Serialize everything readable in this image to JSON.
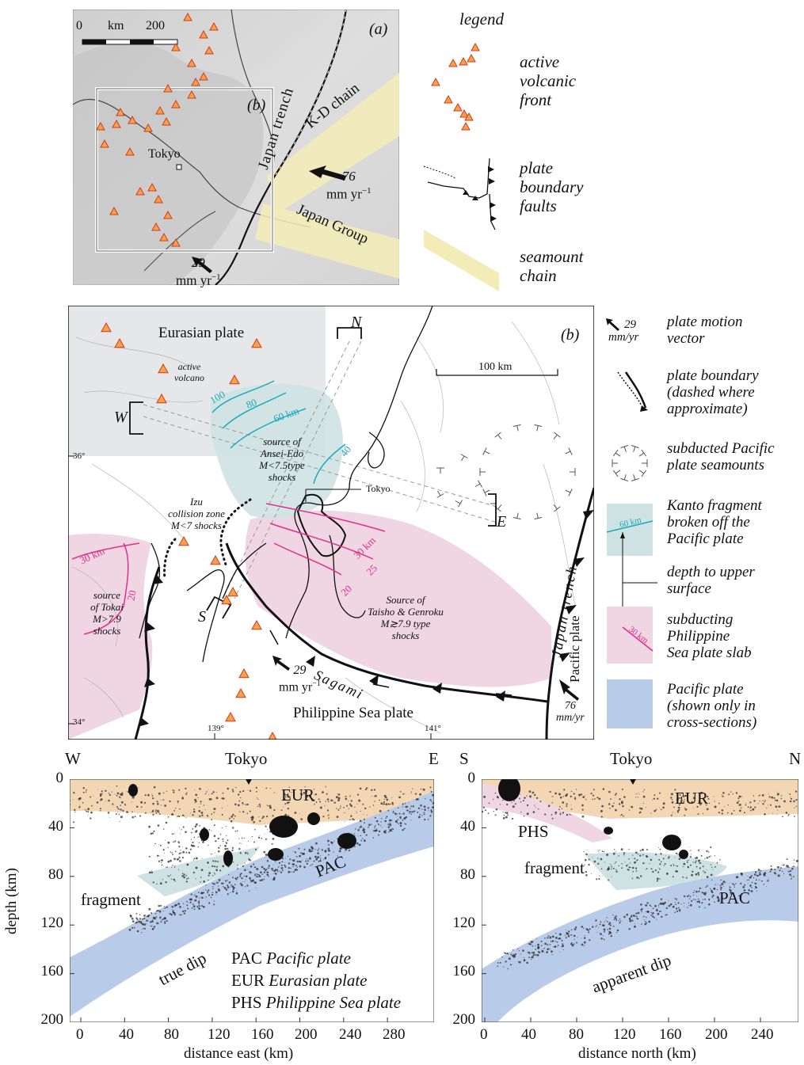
{
  "panel_a": {
    "label": "(a)",
    "inset_label": "(b)",
    "scale": {
      "zero": "0",
      "unit": "km",
      "max": "200"
    },
    "city": "Tokyo",
    "trench": "Japan trench",
    "kd_chain": "K-D chain",
    "japan_group": "Japan Group",
    "vector76": {
      "value": "76",
      "unit": "mm yr",
      "exp": "−1"
    },
    "vector29": {
      "value": "29",
      "unit": "mm yr",
      "exp": "−1"
    }
  },
  "legend_a": {
    "title": "legend",
    "items": [
      {
        "lines": [
          "active",
          "volcanic",
          "front"
        ]
      },
      {
        "lines": [
          "plate",
          "boundary",
          "faults"
        ]
      },
      {
        "lines": [
          "seamount",
          "chain"
        ]
      }
    ]
  },
  "panel_b": {
    "label": "(b)",
    "eurasian": "Eurasian plate",
    "active_volcano": [
      "active",
      "volcano"
    ],
    "scale": "100 km",
    "corner_N": "N",
    "corner_W": "W",
    "corner_E": "E",
    "corner_S": "S",
    "lat36": "36°",
    "lat34": "34°",
    "lon139": "139°",
    "lon141": "141°",
    "contours_teal": [
      "100",
      "80",
      "60 km",
      "40"
    ],
    "contours_pink": [
      "30 km",
      "25",
      "20"
    ],
    "tokai_contours": [
      "30 km",
      "20"
    ],
    "ansei": [
      "source of",
      "Ansei-Edo",
      "M<7.5type",
      "shocks"
    ],
    "tokyo": "Tokyo",
    "izu": [
      "Izu",
      "collision zone",
      "M<7 shocks"
    ],
    "tokai": [
      "source",
      "of Tokai",
      "M>7.9",
      "shocks"
    ],
    "taisho": [
      "Source of",
      "Taisho & Genroku",
      "M≳7.9 type",
      "shocks"
    ],
    "sagami": "Sagami",
    "japan_trench": "Japan trench",
    "pacific": "Pacific plate",
    "philippine": "Philippine Sea plate",
    "vec29": {
      "value": "29",
      "unit": "mm yr",
      "exp": "−1"
    },
    "vec76": {
      "value": "76",
      "unit": "mm/yr"
    }
  },
  "legend_b": {
    "items": [
      {
        "lines": [
          "plate motion",
          "vector"
        ],
        "sub": [
          "29",
          "mm/yr"
        ]
      },
      {
        "lines": [
          "plate boundary",
          "(dashed where",
          "approximate)"
        ]
      },
      {
        "lines": [
          "subducted Pacific",
          "plate  seamounts"
        ]
      },
      {
        "lines": [
          "Kanto fragment",
          "broken off the",
          "Pacific plate"
        ],
        "sample": "60 km"
      },
      {
        "lines": [
          "depth to upper",
          "surface"
        ]
      },
      {
        "lines": [
          "subducting",
          "Philippine",
          "Sea plate slab"
        ],
        "sample": "30 km"
      },
      {
        "lines": [
          "Pacific plate",
          "(shown only in",
          "cross-sections)"
        ]
      }
    ]
  },
  "section_we": {
    "left": "W",
    "right": "E",
    "top_label": "Tokyo",
    "ylabel": "depth (km)",
    "xlabel": "distance east (km)",
    "yticks": [
      "0",
      "40",
      "80",
      "120",
      "160",
      "200"
    ],
    "xticks": [
      "0",
      "40",
      "80",
      "120",
      "160",
      "200",
      "240",
      "280"
    ],
    "labels": {
      "eur": "EUR",
      "pac": "PAC",
      "fragment": "fragment",
      "dip": "true dip"
    },
    "key": [
      {
        "abbr": "PAC",
        "name": "Pacific plate"
      },
      {
        "abbr": "EUR",
        "name": "Eurasian plate"
      },
      {
        "abbr": "PHS",
        "name": "Philippine Sea plate"
      }
    ]
  },
  "section_sn": {
    "left": "S",
    "right": "N",
    "top_label": "Tokyo",
    "xlabel": "distance north (km)",
    "yticks": [
      "0",
      "40",
      "80",
      "120",
      "160",
      "200"
    ],
    "xticks": [
      "0",
      "40",
      "80",
      "120",
      "160",
      "200",
      "240"
    ],
    "labels": {
      "eur": "EUR",
      "phs": "PHS",
      "fragment": "fragment",
      "pac": "PAC",
      "dip": "apparent dip"
    }
  },
  "colors": {
    "teal": "#1aaab8",
    "pink": "#e0308a",
    "tealfill": "#cfe2e3",
    "pinkfill": "#f0d6e2",
    "bluefill": "#b8cbe8",
    "orangefill": "#f3d7b4",
    "yellow": "#f3ecb6"
  }
}
